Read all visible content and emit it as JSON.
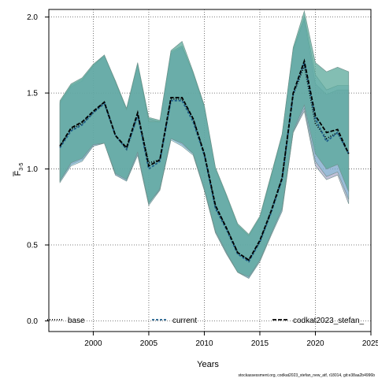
{
  "chart_data": {
    "type": "line",
    "xlabel": "Years",
    "ylabel": "F",
    "ylabel_sub": "3-5",
    "xlim": [
      1996,
      2025
    ],
    "ylim": [
      -0.07,
      2.05
    ],
    "x_ticks": [
      2000,
      2005,
      2010,
      2015,
      2020,
      2025
    ],
    "y_ticks": [
      0.0,
      0.5,
      1.0,
      1.5,
      2.0
    ],
    "y_tick_labels": [
      "0.0",
      "0.5",
      "1.0",
      "1.5",
      "2.0"
    ],
    "grid": true,
    "legend_position": "bottom",
    "footer": "stockassessment.org, codkat2023_stefan_new_atf, r18014, git:e38aa2b4996b",
    "series": [
      {
        "name": "base",
        "color": "#000000",
        "dash": "1,2",
        "band_color": "#8e8eb8",
        "years": [
          1997,
          1998,
          1999,
          2000,
          2001,
          2002,
          2003,
          2004,
          2005,
          2006,
          2007,
          2008,
          2009,
          2010,
          2011,
          2012,
          2013,
          2014,
          2015,
          2016,
          2017,
          2018,
          2019,
          2020,
          2021,
          2022,
          2023
        ],
        "values": [
          1.15,
          1.26,
          1.3,
          1.37,
          1.44,
          1.22,
          1.13,
          1.36,
          1.04,
          1.06,
          1.46,
          1.46,
          1.33,
          1.1,
          0.75,
          0.61,
          0.45,
          0.4,
          0.52,
          0.72,
          0.94,
          1.49,
          1.68,
          1.3,
          1.2,
          1.24,
          1.1
        ],
        "lower": [
          0.92,
          1.03,
          1.06,
          1.15,
          1.17,
          0.96,
          0.92,
          1.1,
          0.78,
          0.86,
          1.2,
          1.16,
          1.1,
          0.86,
          0.58,
          0.44,
          0.32,
          0.28,
          0.4,
          0.57,
          0.73,
          1.24,
          1.38,
          1.02,
          0.93,
          0.96,
          0.77
        ],
        "upper": [
          1.43,
          1.54,
          1.58,
          1.68,
          1.74,
          1.58,
          1.39,
          1.69,
          1.33,
          1.31,
          1.76,
          1.8,
          1.63,
          1.41,
          1.0,
          0.82,
          0.63,
          0.56,
          0.68,
          0.95,
          1.22,
          1.78,
          1.98,
          1.56,
          1.49,
          1.52,
          1.52
        ]
      },
      {
        "name": "current",
        "color": "#1f5f8b",
        "dash": "3,2",
        "band_color": "#7ab8d8",
        "years": [
          1997,
          1998,
          1999,
          2000,
          2001,
          2002,
          2003,
          2004,
          2005,
          2006,
          2007,
          2008,
          2009,
          2010,
          2011,
          2012,
          2013,
          2014,
          2015,
          2016,
          2017,
          2018,
          2019,
          2020,
          2021,
          2022,
          2023
        ],
        "values": [
          1.14,
          1.25,
          1.29,
          1.37,
          1.43,
          1.22,
          1.13,
          1.35,
          1.0,
          1.05,
          1.45,
          1.45,
          1.31,
          1.09,
          0.74,
          0.6,
          0.44,
          0.39,
          0.52,
          0.71,
          0.93,
          1.49,
          1.7,
          1.33,
          1.18,
          1.24,
          1.1
        ],
        "lower": [
          0.91,
          1.02,
          1.05,
          1.15,
          1.17,
          0.96,
          0.92,
          1.09,
          0.76,
          0.86,
          1.19,
          1.15,
          1.09,
          0.86,
          0.58,
          0.44,
          0.32,
          0.28,
          0.39,
          0.56,
          0.72,
          1.24,
          1.4,
          1.05,
          0.95,
          0.98,
          0.8
        ],
        "upper": [
          1.44,
          1.55,
          1.59,
          1.68,
          1.75,
          1.57,
          1.39,
          1.69,
          1.31,
          1.31,
          1.77,
          1.81,
          1.63,
          1.41,
          1.0,
          0.82,
          0.63,
          0.56,
          0.68,
          0.94,
          1.22,
          1.79,
          2.0,
          1.62,
          1.52,
          1.55,
          1.55
        ]
      },
      {
        "name": "codkat2023_stefan_",
        "color": "#000000",
        "dash": "5,2",
        "band_color": "#5aa89a",
        "years": [
          1997,
          1998,
          1999,
          2000,
          2001,
          2002,
          2003,
          2004,
          2005,
          2006,
          2007,
          2008,
          2009,
          2010,
          2011,
          2012,
          2013,
          2014,
          2015,
          2016,
          2017,
          2018,
          2019,
          2020,
          2021,
          2022,
          2023
        ],
        "values": [
          1.15,
          1.27,
          1.31,
          1.38,
          1.44,
          1.22,
          1.14,
          1.37,
          1.02,
          1.06,
          1.47,
          1.47,
          1.33,
          1.1,
          0.76,
          0.61,
          0.45,
          0.4,
          0.53,
          0.72,
          0.94,
          1.5,
          1.71,
          1.35,
          1.24,
          1.26,
          1.1
        ],
        "lower": [
          0.92,
          1.04,
          1.07,
          1.16,
          1.17,
          0.97,
          0.93,
          1.11,
          0.77,
          0.87,
          1.2,
          1.17,
          1.1,
          0.87,
          0.59,
          0.45,
          0.32,
          0.29,
          0.4,
          0.57,
          0.74,
          1.25,
          1.42,
          1.1,
          1.0,
          1.03,
          0.85
        ],
        "upper": [
          1.45,
          1.56,
          1.6,
          1.69,
          1.75,
          1.58,
          1.4,
          1.7,
          1.34,
          1.32,
          1.78,
          1.84,
          1.64,
          1.42,
          1.01,
          0.83,
          0.64,
          0.57,
          0.69,
          0.96,
          1.23,
          1.8,
          2.04,
          1.7,
          1.64,
          1.67,
          1.64
        ]
      }
    ]
  }
}
